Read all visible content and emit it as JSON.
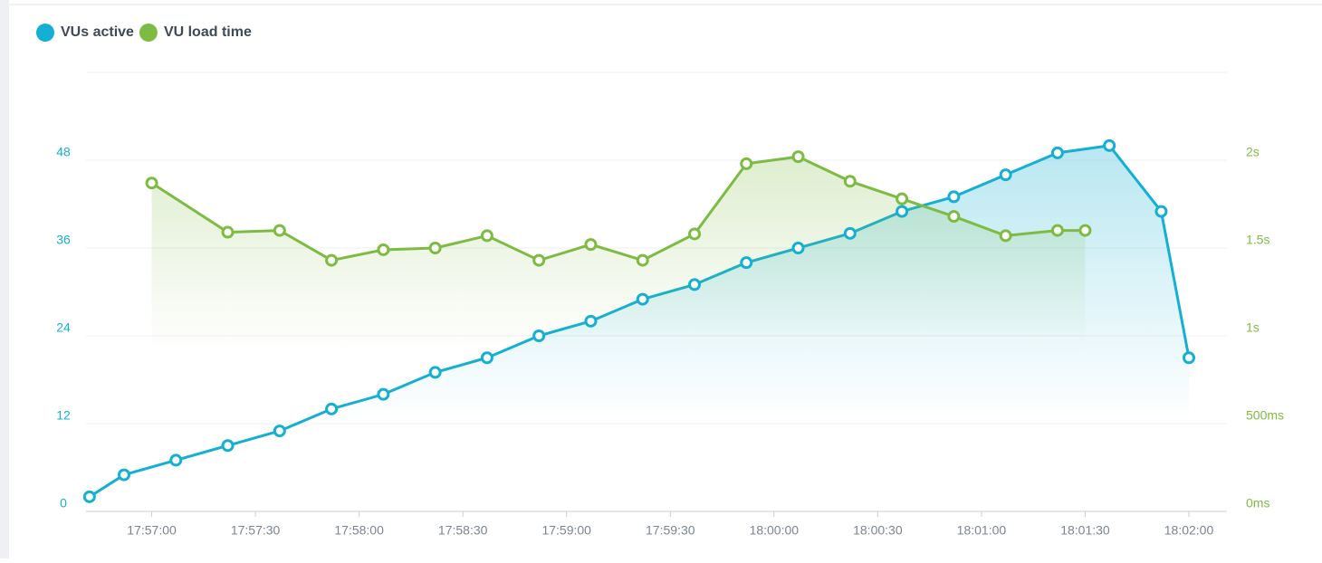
{
  "chart_data": {
    "type": "line",
    "xlim": [
      "17:56:41",
      "18:02:11"
    ],
    "xticks": [
      "17:57:00",
      "17:57:30",
      "17:58:00",
      "17:58:30",
      "17:59:00",
      "17:59:30",
      "18:00:00",
      "18:00:30",
      "18:01:00",
      "18:01:30",
      "18:02:00"
    ],
    "ylim": [
      0,
      60
    ],
    "yticks": [
      0,
      12,
      24,
      36,
      48
    ],
    "y2lim": [
      0,
      2500
    ],
    "y2ticks": [
      {
        "value": 0,
        "label": "0ms"
      },
      {
        "value": 500,
        "label": "500ms"
      },
      {
        "value": 1000,
        "label": "1s"
      },
      {
        "value": 1500,
        "label": "1.5s"
      },
      {
        "value": 2000,
        "label": "2s"
      }
    ],
    "grid": true,
    "series": [
      {
        "name": "VUs active",
        "color": "#14afd2",
        "x": [
          "17:56:42",
          "17:56:52",
          "17:57:07",
          "17:57:22",
          "17:57:37",
          "17:57:52",
          "17:58:07",
          "17:58:22",
          "17:58:37",
          "17:58:52",
          "17:59:07",
          "17:59:22",
          "17:59:37",
          "17:59:52",
          "18:00:07",
          "18:00:22",
          "18:00:37",
          "18:00:52",
          "18:01:07",
          "18:01:22",
          "18:01:37",
          "18:01:52",
          "18:02:00"
        ],
        "values": [
          2,
          5,
          7,
          9,
          11,
          14,
          16,
          19,
          21,
          24,
          26,
          29,
          31,
          34,
          36,
          38,
          41,
          43,
          46,
          49,
          50,
          41,
          21
        ]
      },
      {
        "name": "VU load time",
        "color": "#7dbb42",
        "axis": "y2",
        "x": [
          "17:57:00",
          "17:57:22",
          "17:57:37",
          "17:57:52",
          "17:58:07",
          "17:58:22",
          "17:58:37",
          "17:58:52",
          "17:59:07",
          "17:59:22",
          "17:59:37",
          "17:59:52",
          "18:00:07",
          "18:00:22",
          "18:00:37",
          "18:00:52",
          "18:01:07",
          "18:01:22",
          "18:01:30"
        ],
        "values": [
          1870,
          1590,
          1600,
          1430,
          1490,
          1500,
          1570,
          1430,
          1520,
          1430,
          1580,
          1980,
          2020,
          1880,
          1780,
          1680,
          1570,
          1600,
          1600
        ]
      }
    ]
  }
}
